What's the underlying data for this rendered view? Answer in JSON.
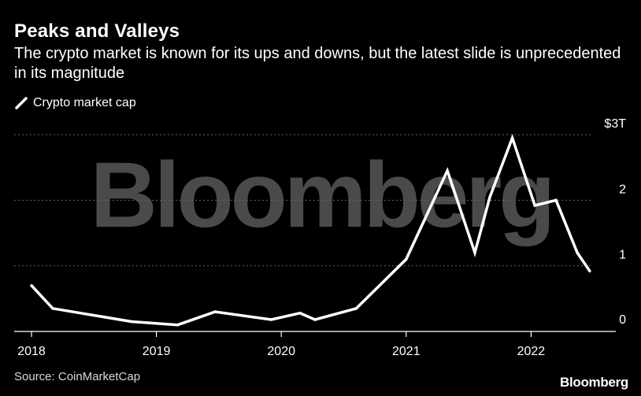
{
  "header": {
    "title": "Peaks and Valleys",
    "subtitle": "The crypto market is known for its ups and downs, but the latest slide is unprecedented in its magnitude"
  },
  "legend": {
    "label": "Crypto market cap",
    "icon": "diagonal-line-icon"
  },
  "footer": {
    "source": "Source: CoinMarketCap",
    "brand": "Bloomberg"
  },
  "watermark": "Bloomberg",
  "colors": {
    "background": "#000000",
    "line": "#ffffff",
    "grid": "#666666",
    "axis": "#ffffff",
    "watermark": "#4a4a4a"
  },
  "chart_data": {
    "type": "line",
    "title": "Peaks and Valleys",
    "xlabel": "",
    "ylabel": "",
    "xlim": [
      2018,
      2022.65
    ],
    "ylim": [
      0,
      3
    ],
    "grid": true,
    "legend_position": "top-left",
    "y_ticks": [
      {
        "value": 3,
        "label": "$3T"
      },
      {
        "value": 2,
        "label": "2"
      },
      {
        "value": 1,
        "label": "1"
      },
      {
        "value": 0,
        "label": "0"
      }
    ],
    "x_ticks": [
      {
        "value": 2018,
        "label": "2018"
      },
      {
        "value": 2019,
        "label": "2019"
      },
      {
        "value": 2020,
        "label": "2020"
      },
      {
        "value": 2021,
        "label": "2021"
      },
      {
        "value": 2022,
        "label": "2022"
      }
    ],
    "series": [
      {
        "name": "Crypto market cap",
        "x": [
          2018.0,
          2018.17,
          2018.8,
          2019.17,
          2019.47,
          2019.92,
          2020.15,
          2020.27,
          2020.6,
          2021.0,
          2021.33,
          2021.55,
          2021.67,
          2021.85,
          2022.03,
          2022.2,
          2022.37,
          2022.47
        ],
        "values": [
          0.7,
          0.35,
          0.15,
          0.1,
          0.3,
          0.18,
          0.28,
          0.18,
          0.35,
          1.1,
          2.45,
          1.2,
          2.05,
          2.95,
          1.92,
          2.0,
          1.2,
          0.92
        ]
      }
    ]
  }
}
